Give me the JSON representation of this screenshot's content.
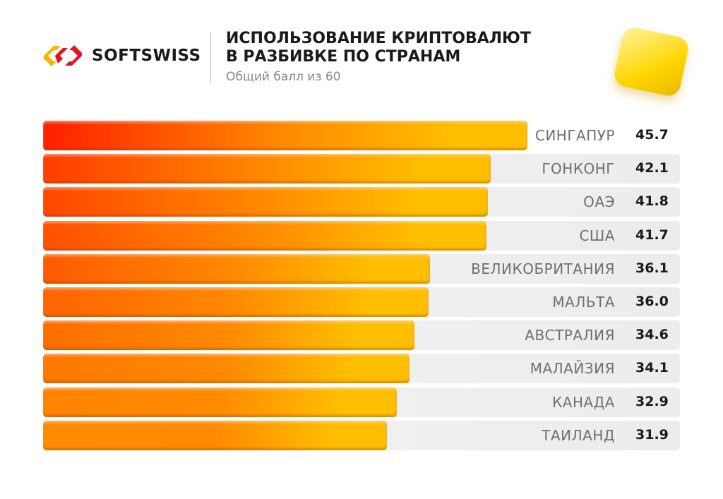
{
  "logo": {
    "text": "SOFTSWISS"
  },
  "chart_data": {
    "type": "bar",
    "orientation": "horizontal",
    "title": "ИСПОЛЬЗОВАНИЕ КРИПТОВАЛЮТ В РАЗБИВКЕ ПО СТРАНАМ",
    "title_lines": [
      "ИСПОЛЬЗОВАНИЕ КРИПТОВАЛЮТ",
      "В РАЗБИВКЕ ПО СТРАНАМ"
    ],
    "subtitle": "Общий балл из 60",
    "xlim": [
      0,
      60
    ],
    "categories": [
      "СИНГАПУР",
      "ГОНКОНГ",
      "ОАЭ",
      "США",
      "ВЕЛИКОБРИТАНИЯ",
      "МАЛЬТА",
      "АВСТРАЛИЯ",
      "МАЛАЙЗИЯ",
      "КАНАДА",
      "ТАИЛАНД"
    ],
    "values": [
      45.7,
      42.1,
      41.8,
      41.7,
      36.1,
      36.0,
      34.6,
      34.1,
      32.9,
      31.9
    ],
    "value_labels": [
      "45.7",
      "42.1",
      "41.8",
      "41.7",
      "36.1",
      "36.0",
      "34.6",
      "34.1",
      "32.9",
      "31.9"
    ],
    "colors": {
      "gradient_start_top": "#ff2a00",
      "gradient_start_bottom": "#ff8a00",
      "gradient_end": "#ffbf00",
      "row_bg": "#efefef"
    }
  }
}
